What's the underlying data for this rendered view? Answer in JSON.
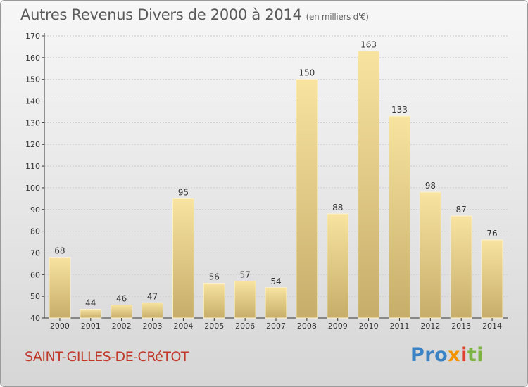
{
  "title": "Autres Revenus Divers de 2000 à 2014",
  "unit": "(en milliers d'€)",
  "commune": "SAINT-GILLES-DE-CRéTOT",
  "logo": {
    "p1": "Pro",
    "p2": "x",
    "p3": "i",
    "p4": "ti"
  },
  "colors": {
    "bar_light": "#f8e3a0",
    "bar_dark": "#c7ad6a",
    "axis": "#333333",
    "grid": "#cccccc"
  },
  "chart_data": {
    "type": "bar",
    "categories": [
      "2000",
      "2001",
      "2002",
      "2003",
      "2004",
      "2005",
      "2006",
      "2007",
      "2008",
      "2009",
      "2010",
      "2011",
      "2012",
      "2013",
      "2014"
    ],
    "values": [
      68,
      44,
      46,
      47,
      95,
      56,
      57,
      54,
      150,
      88,
      163,
      133,
      98,
      87,
      76
    ],
    "ylim": [
      40,
      170
    ],
    "yticks": [
      40,
      50,
      60,
      70,
      80,
      90,
      100,
      110,
      120,
      130,
      140,
      150,
      160,
      170
    ],
    "grid": true,
    "data_labels": true
  }
}
